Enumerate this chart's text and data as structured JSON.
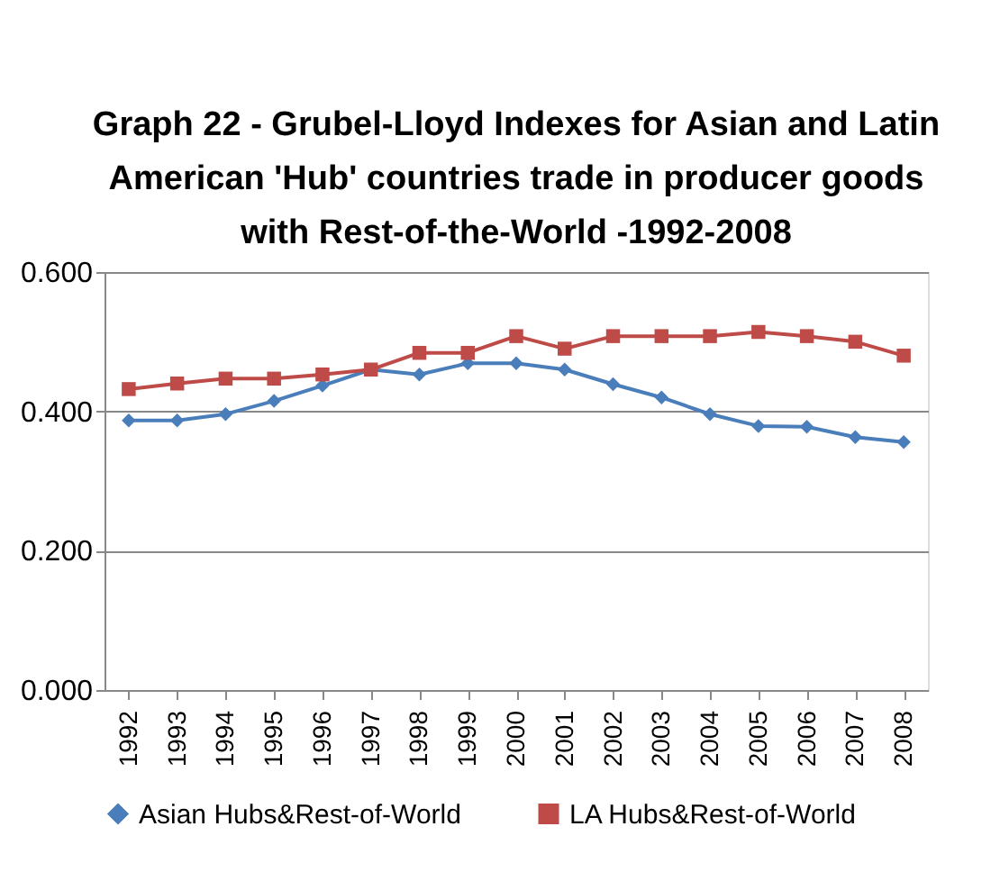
{
  "chart_data": {
    "type": "line",
    "title": "Graph 22 - Grubel-Lloyd Indexes for Asian and Latin American 'Hub' countries trade in producer goods with Rest-of-the-World -1992-2008",
    "categories": [
      "1992",
      "1993",
      "1994",
      "1995",
      "1996",
      "1997",
      "1998",
      "1999",
      "2000",
      "2001",
      "2002",
      "2003",
      "2004",
      "2005",
      "2006",
      "2007",
      "2008"
    ],
    "series": [
      {
        "name": "Asian Hubs&Rest-of-World",
        "color": "#4a7ebb",
        "marker": "diamond",
        "values": [
          0.387,
          0.387,
          0.396,
          0.415,
          0.437,
          0.46,
          0.453,
          0.469,
          0.469,
          0.46,
          0.439,
          0.42,
          0.396,
          0.379,
          0.378,
          0.363,
          0.356
        ]
      },
      {
        "name": "LA Hubs&Rest-of-World",
        "color": "#be4b48",
        "marker": "square",
        "values": [
          0.432,
          0.44,
          0.447,
          0.447,
          0.453,
          0.46,
          0.484,
          0.484,
          0.508,
          0.49,
          0.508,
          0.508,
          0.508,
          0.514,
          0.508,
          0.5,
          0.48
        ]
      }
    ],
    "ylim": [
      0,
      0.6
    ],
    "yticks": [
      {
        "value": 0,
        "label": "0.000"
      },
      {
        "value": 0.2,
        "label": "0.200"
      },
      {
        "value": 0.4,
        "label": "0.400"
      },
      {
        "value": 0.6,
        "label": "0.600"
      }
    ],
    "grid": "y",
    "legend": "bottom"
  }
}
